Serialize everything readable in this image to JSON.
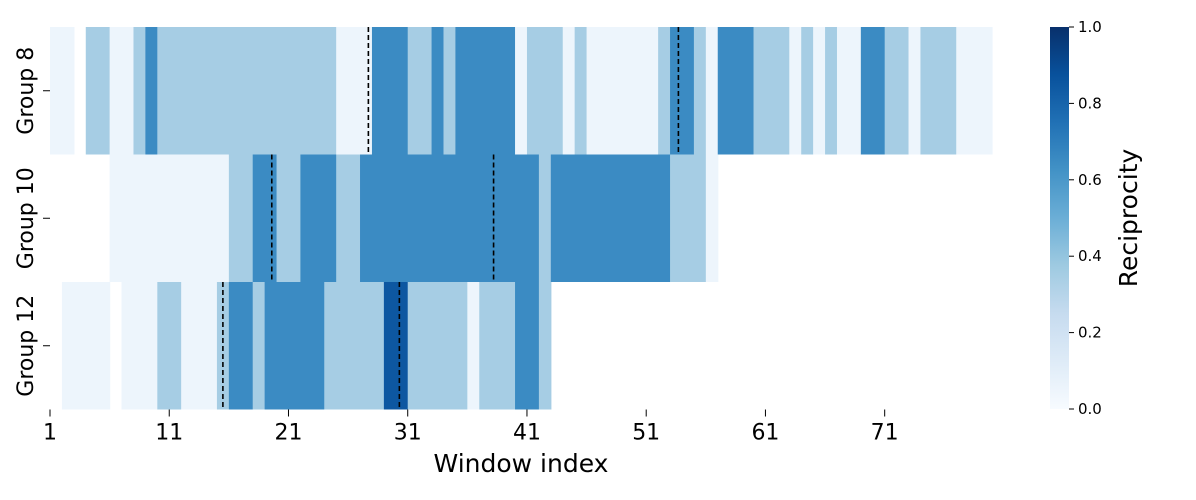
{
  "chart_data": {
    "type": "heatmap",
    "xlabel": "Window index",
    "cbar_label": "Reciprocity",
    "x_tick_labels": [
      "1",
      "11",
      "21",
      "31",
      "41",
      "51",
      "61",
      "71"
    ],
    "x_tick_values": [
      1,
      11,
      21,
      31,
      41,
      51,
      61,
      71
    ],
    "x_range": [
      1,
      80
    ],
    "cbar_ticks": [
      "0.0",
      "0.2",
      "0.4",
      "0.6",
      "0.8",
      "1.0"
    ],
    "cbar_tick_values": [
      0.0,
      0.2,
      0.4,
      0.6,
      0.8,
      1.0
    ],
    "vmin": 0.0,
    "vmax": 1.0,
    "colormap": "Blues",
    "rows": [
      {
        "label": "Group 8",
        "segments": [
          {
            "start": 1,
            "end": 3,
            "value": 0.05
          },
          {
            "start": 4,
            "end": 6,
            "value": 0.35
          },
          {
            "start": 6,
            "end": 8,
            "value": 0.05
          },
          {
            "start": 8,
            "end": 9,
            "value": 0.35
          },
          {
            "start": 9,
            "end": 10,
            "value": 0.65
          },
          {
            "start": 10,
            "end": 25,
            "value": 0.35
          },
          {
            "start": 25,
            "end": 28,
            "value": 0.05
          },
          {
            "start": 28,
            "end": 31,
            "value": 0.65
          },
          {
            "start": 31,
            "end": 33,
            "value": 0.35
          },
          {
            "start": 33,
            "end": 34,
            "value": 0.65
          },
          {
            "start": 34,
            "end": 35,
            "value": 0.35
          },
          {
            "start": 35,
            "end": 40,
            "value": 0.65
          },
          {
            "start": 40,
            "end": 41,
            "value": 0.05
          },
          {
            "start": 41,
            "end": 44,
            "value": 0.35
          },
          {
            "start": 44,
            "end": 45,
            "value": 0.05
          },
          {
            "start": 45,
            "end": 46,
            "value": 0.35
          },
          {
            "start": 46,
            "end": 52,
            "value": 0.05
          },
          {
            "start": 52,
            "end": 53,
            "value": 0.35
          },
          {
            "start": 53,
            "end": 55,
            "value": 0.65
          },
          {
            "start": 55,
            "end": 56,
            "value": 0.35
          },
          {
            "start": 56,
            "end": 57,
            "value": 0.05
          },
          {
            "start": 57,
            "end": 60,
            "value": 0.65
          },
          {
            "start": 60,
            "end": 63,
            "value": 0.35
          },
          {
            "start": 63,
            "end": 64,
            "value": 0.05
          },
          {
            "start": 64,
            "end": 65,
            "value": 0.35
          },
          {
            "start": 65,
            "end": 66,
            "value": 0.05
          },
          {
            "start": 66,
            "end": 67,
            "value": 0.35
          },
          {
            "start": 67,
            "end": 69,
            "value": 0.05
          },
          {
            "start": 69,
            "end": 71,
            "value": 0.65
          },
          {
            "start": 71,
            "end": 73,
            "value": 0.35
          },
          {
            "start": 73,
            "end": 74,
            "value": 0.05
          },
          {
            "start": 74,
            "end": 77,
            "value": 0.35
          },
          {
            "start": 77,
            "end": 80,
            "value": 0.05
          }
        ],
        "dashed_lines_at": [
          27.7,
          53.7
        ]
      },
      {
        "label": "Group 10",
        "segments": [
          {
            "start": 6,
            "end": 16,
            "value": 0.05
          },
          {
            "start": 16,
            "end": 18,
            "value": 0.35
          },
          {
            "start": 18,
            "end": 20,
            "value": 0.65
          },
          {
            "start": 20,
            "end": 22,
            "value": 0.35
          },
          {
            "start": 22,
            "end": 25,
            "value": 0.65
          },
          {
            "start": 25,
            "end": 27,
            "value": 0.35
          },
          {
            "start": 27,
            "end": 42,
            "value": 0.65
          },
          {
            "start": 42,
            "end": 43,
            "value": 0.35
          },
          {
            "start": 43,
            "end": 53,
            "value": 0.65
          },
          {
            "start": 53,
            "end": 56,
            "value": 0.35
          },
          {
            "start": 56,
            "end": 57,
            "value": 0.05
          }
        ],
        "dashed_lines_at": [
          19.6,
          38.2
        ]
      },
      {
        "label": "Group 12",
        "segments": [
          {
            "start": 2,
            "end": 6,
            "value": 0.05
          },
          {
            "start": 7,
            "end": 10,
            "value": 0.05
          },
          {
            "start": 10,
            "end": 12,
            "value": 0.35
          },
          {
            "start": 12,
            "end": 15,
            "value": 0.05
          },
          {
            "start": 15,
            "end": 16,
            "value": 0.35
          },
          {
            "start": 16,
            "end": 18,
            "value": 0.65
          },
          {
            "start": 18,
            "end": 19,
            "value": 0.35
          },
          {
            "start": 19,
            "end": 24,
            "value": 0.65
          },
          {
            "start": 24,
            "end": 29,
            "value": 0.35
          },
          {
            "start": 29,
            "end": 31,
            "value": 0.85
          },
          {
            "start": 31,
            "end": 36,
            "value": 0.35
          },
          {
            "start": 36,
            "end": 37,
            "value": 0.05
          },
          {
            "start": 37,
            "end": 40,
            "value": 0.35
          },
          {
            "start": 40,
            "end": 42,
            "value": 0.65
          },
          {
            "start": 42,
            "end": 43,
            "value": 0.35
          }
        ],
        "dashed_lines_at": [
          15.5,
          30.3
        ]
      }
    ]
  }
}
